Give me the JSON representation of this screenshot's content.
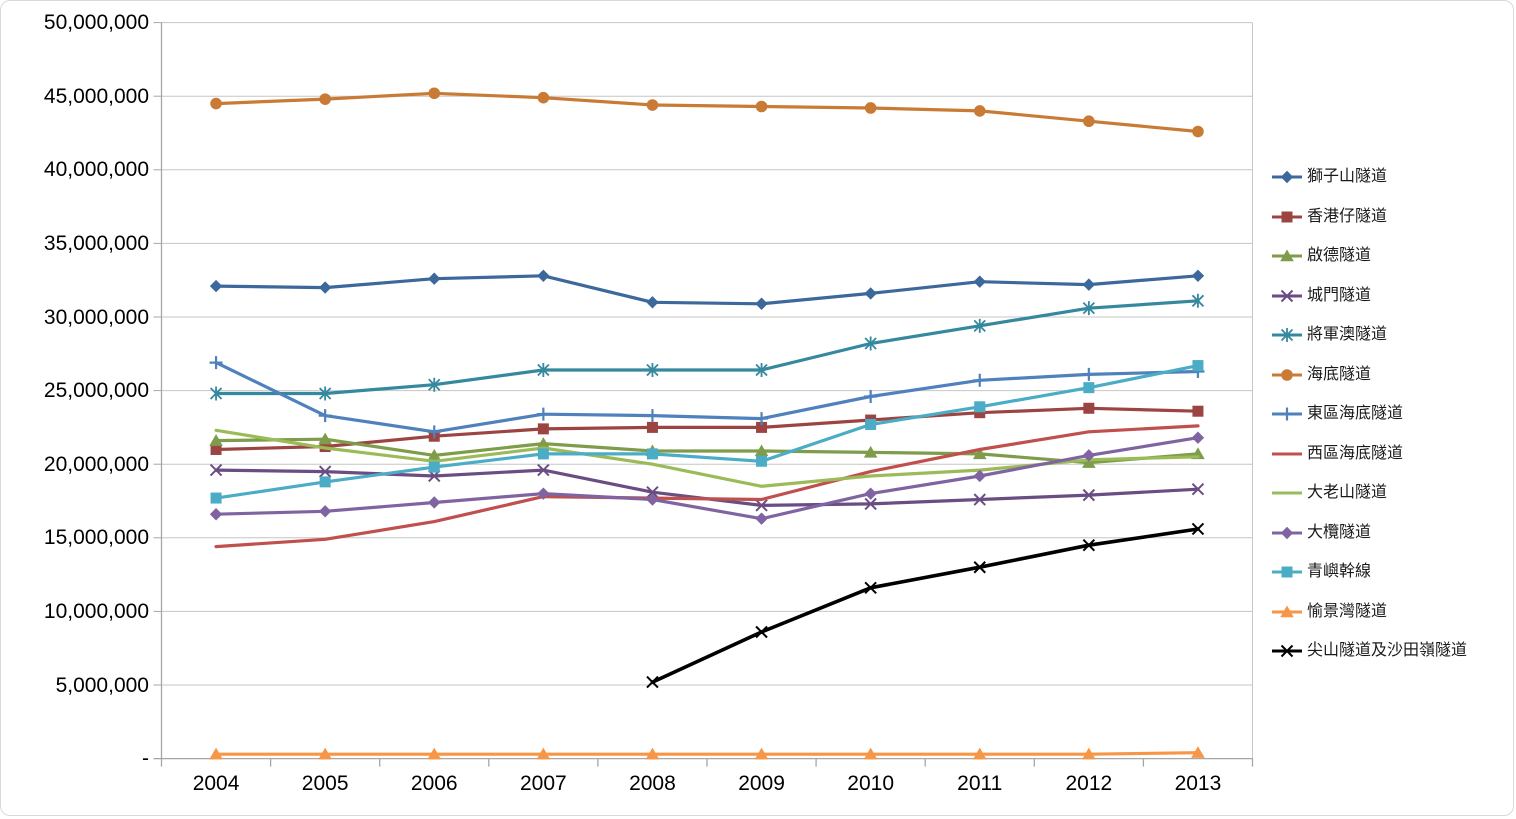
{
  "chart_data": {
    "type": "line",
    "title": "",
    "xlabel": "",
    "ylabel": "",
    "grid": true,
    "legend_position": "right",
    "x": [
      "2004",
      "2005",
      "2006",
      "2007",
      "2008",
      "2009",
      "2010",
      "2011",
      "2012",
      "2013"
    ],
    "y_axis": {
      "min": 0,
      "max": 50000000,
      "step": 5000000,
      "tick_labels": [
        "-",
        "5,000,000",
        "10,000,000",
        "15,000,000",
        "20,000,000",
        "25,000,000",
        "30,000,000",
        "35,000,000",
        "40,000,000",
        "45,000,000",
        "50,000,000"
      ]
    },
    "series": [
      {
        "name": "獅子山隧道",
        "color": "#3C689C",
        "marker": "diamond",
        "values": [
          32100000,
          32000000,
          32600000,
          32800000,
          31000000,
          30900000,
          31600000,
          32400000,
          32200000,
          32800000
        ]
      },
      {
        "name": "香港仔隧道",
        "color": "#9C4442",
        "marker": "square",
        "values": [
          21000000,
          21200000,
          21900000,
          22400000,
          22500000,
          22500000,
          23000000,
          23500000,
          23800000,
          23600000
        ]
      },
      {
        "name": "啟德隧道",
        "color": "#7E9C49",
        "marker": "triangle",
        "values": [
          21600000,
          21700000,
          20600000,
          21400000,
          20900000,
          20900000,
          20800000,
          20700000,
          20100000,
          20700000
        ]
      },
      {
        "name": "城門隧道",
        "color": "#6A4D82",
        "marker": "x",
        "values": [
          19600000,
          19500000,
          19200000,
          19600000,
          18100000,
          17200000,
          17300000,
          17600000,
          17900000,
          18300000
        ]
      },
      {
        "name": "將軍澳隧道",
        "color": "#35889E",
        "marker": "star",
        "values": [
          24800000,
          24800000,
          25400000,
          26400000,
          26400000,
          26400000,
          28200000,
          29400000,
          30600000,
          31100000
        ]
      },
      {
        "name": "海底隧道",
        "color": "#C97A35",
        "marker": "circle",
        "values": [
          44500000,
          44800000,
          45200000,
          44900000,
          44400000,
          44300000,
          44200000,
          44000000,
          43300000,
          42600000
        ]
      },
      {
        "name": "東區海底隧道",
        "color": "#4F81BD",
        "marker": "plus",
        "values": [
          26900000,
          23300000,
          22200000,
          23400000,
          23300000,
          23100000,
          24600000,
          25700000,
          26100000,
          26300000
        ]
      },
      {
        "name": "西區海底隧道",
        "color": "#C0504D",
        "marker": "none",
        "values": [
          14400000,
          14900000,
          16100000,
          17800000,
          17700000,
          17600000,
          19500000,
          21000000,
          22200000,
          22600000
        ]
      },
      {
        "name": "大老山隧道",
        "color": "#9BBB59",
        "marker": "none",
        "values": [
          22300000,
          21100000,
          20200000,
          21100000,
          20000000,
          18500000,
          19200000,
          19600000,
          20300000,
          20500000
        ]
      },
      {
        "name": "大欖隧道",
        "color": "#8064A2",
        "marker": "diamond",
        "values": [
          16600000,
          16800000,
          17400000,
          18000000,
          17600000,
          16300000,
          18000000,
          19200000,
          20600000,
          21800000
        ]
      },
      {
        "name": "青嶼幹線",
        "color": "#4BACC6",
        "marker": "square",
        "values": [
          17700000,
          18800000,
          19800000,
          20700000,
          20700000,
          20200000,
          22700000,
          23900000,
          25200000,
          26700000
        ]
      },
      {
        "name": "愉景灣隧道",
        "color": "#F79646",
        "marker": "triangle",
        "values": [
          300000,
          300000,
          300000,
          300000,
          300000,
          300000,
          300000,
          300000,
          300000,
          400000
        ]
      },
      {
        "name": "尖山隧道及沙田嶺隧道",
        "color": "#000000",
        "marker": "x",
        "values": [
          null,
          null,
          null,
          null,
          5200000,
          8600000,
          11600000,
          13000000,
          14500000,
          15600000
        ]
      }
    ],
    "axis_colors": {
      "axis_line": "#A6A6A6",
      "gridline": "#C6C6C6"
    }
  }
}
